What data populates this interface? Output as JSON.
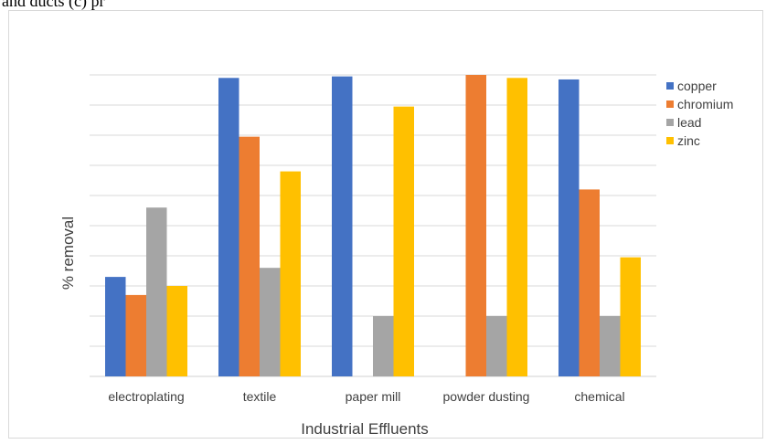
{
  "page_top_fragment": "and ducts (c) pr",
  "chart_data": {
    "type": "bar",
    "title": "",
    "xlabel": "Industrial Effluents",
    "ylabel": "% removal",
    "categories": [
      "electroplating",
      "textile",
      "paper mill",
      "powder dusting",
      "chemical"
    ],
    "series": [
      {
        "name": "copper",
        "color": "#4472C4",
        "values": [
          33,
          99,
          99.5,
          0,
          98.5
        ]
      },
      {
        "name": "chromium",
        "color": "#ED7D31",
        "values": [
          27,
          79.5,
          0,
          100,
          62
        ]
      },
      {
        "name": "lead",
        "color": "#A5A5A5",
        "values": [
          56,
          36,
          20,
          20,
          20
        ]
      },
      {
        "name": "zinc",
        "color": "#FFC000",
        "values": [
          30,
          68,
          89.5,
          99,
          39.5
        ]
      }
    ],
    "ylim": [
      0,
      100
    ],
    "gridlines": 10,
    "grid": true,
    "y_tick_labels_shown": false,
    "legend_position": "right"
  }
}
